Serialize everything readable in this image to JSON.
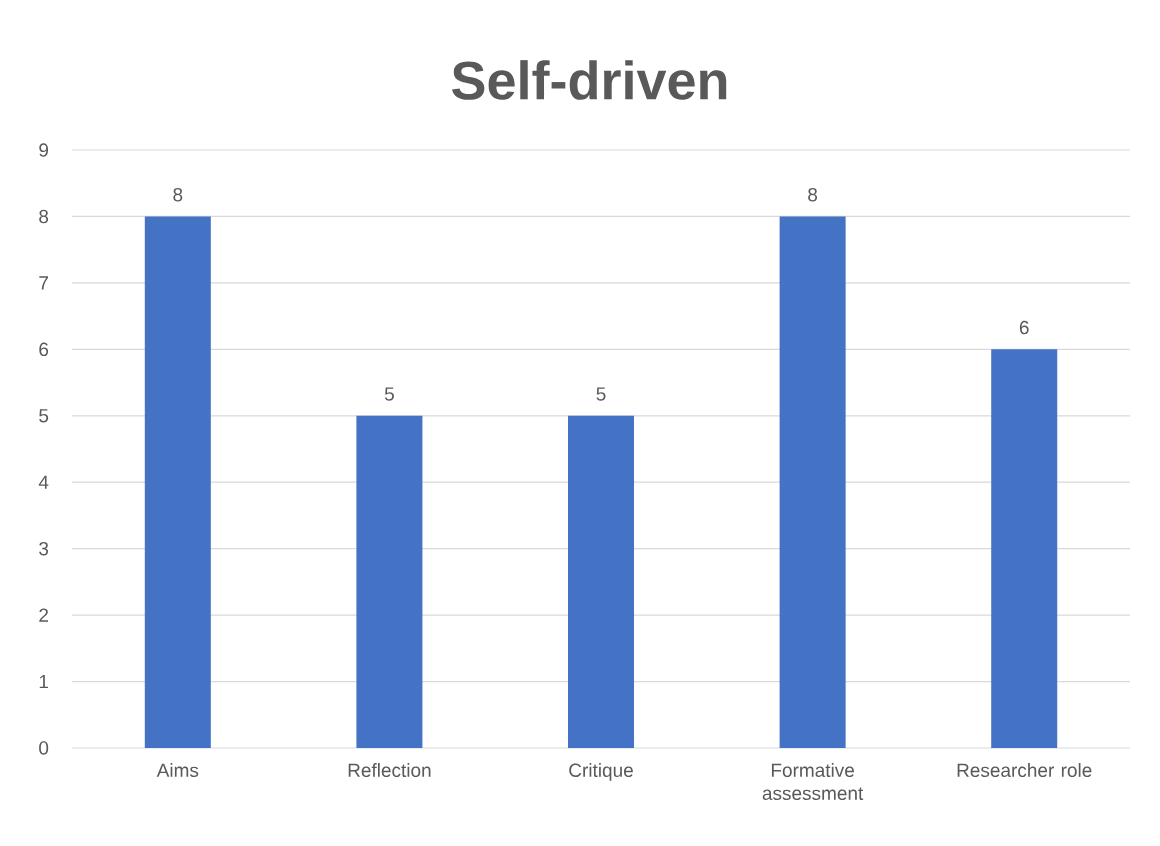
{
  "chart_data": {
    "type": "bar",
    "title": "Self-driven",
    "categories": [
      "Aims",
      "Reflection",
      "Critique",
      "Formative assessment",
      "Researcher role"
    ],
    "values": [
      8,
      5,
      5,
      8,
      6
    ],
    "color": "#4472c4",
    "ylim": [
      0,
      9
    ],
    "yticks": [
      0,
      1,
      2,
      3,
      4,
      5,
      6,
      7,
      8,
      9
    ],
    "grid": "y",
    "data_labels": true
  }
}
